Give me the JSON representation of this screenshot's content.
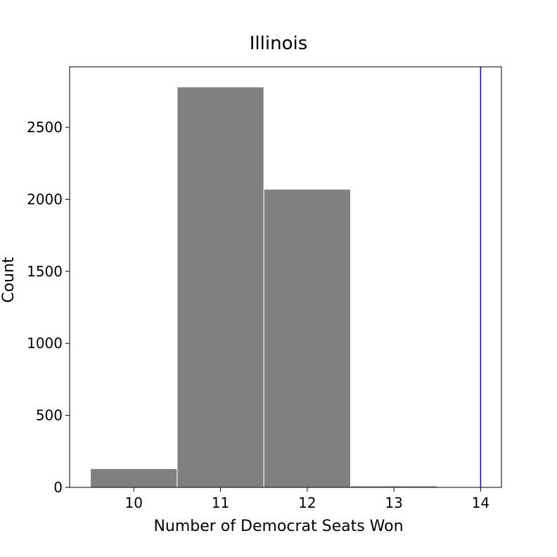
{
  "chart_data": {
    "type": "bar",
    "title": "Illinois",
    "xlabel": "Number of Democrat Seats Won",
    "ylabel": "Count",
    "categories": [
      "10",
      "11",
      "12",
      "13"
    ],
    "bins": [
      {
        "from": 9.5,
        "to": 10.5,
        "value": 130
      },
      {
        "from": 10.5,
        "to": 11.5,
        "value": 2780
      },
      {
        "from": 11.5,
        "to": 12.5,
        "value": 2070
      },
      {
        "from": 12.5,
        "to": 13.5,
        "value": 10
      }
    ],
    "reference_line": {
      "x": 14,
      "color": "#0000ff"
    },
    "bar_color": "#808080",
    "xlim": [
      9.26,
      14.24
    ],
    "ylim": [
      0,
      2920
    ],
    "xticks": [
      10,
      11,
      12,
      13,
      14
    ],
    "yticks": [
      0,
      500,
      1000,
      1500,
      2000,
      2500
    ],
    "grid": false
  }
}
